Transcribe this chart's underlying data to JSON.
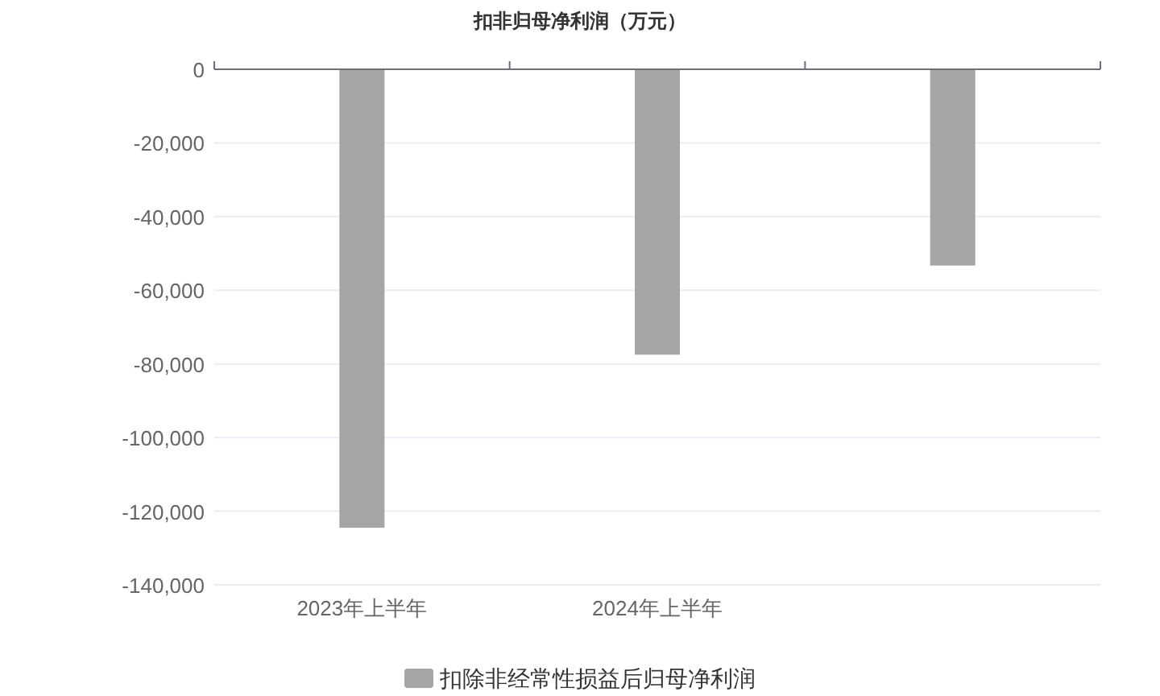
{
  "chart_data": {
    "type": "bar",
    "title": "扣非归母净利润（万元）",
    "categories": [
      "2023年上半年",
      "2024年上半年",
      null
    ],
    "series": [
      {
        "name": "扣除非经常性损益后归母净利润",
        "color": "#a5a5a5",
        "values": [
          -124500,
          -77500,
          -53300
        ]
      }
    ],
    "ylim": [
      -140000,
      0
    ],
    "yticks": [
      {
        "value": 0,
        "label": "0"
      },
      {
        "value": -20000,
        "label": "-20,000"
      },
      {
        "value": -40000,
        "label": "-40,000"
      },
      {
        "value": -60000,
        "label": "-60,000"
      },
      {
        "value": -80000,
        "label": "-80,000"
      },
      {
        "value": -100000,
        "label": "-100,000"
      },
      {
        "value": -120000,
        "label": "-120,000"
      },
      {
        "value": -140000,
        "label": "-140,000"
      }
    ],
    "grid": "y",
    "legend": "bottom"
  }
}
